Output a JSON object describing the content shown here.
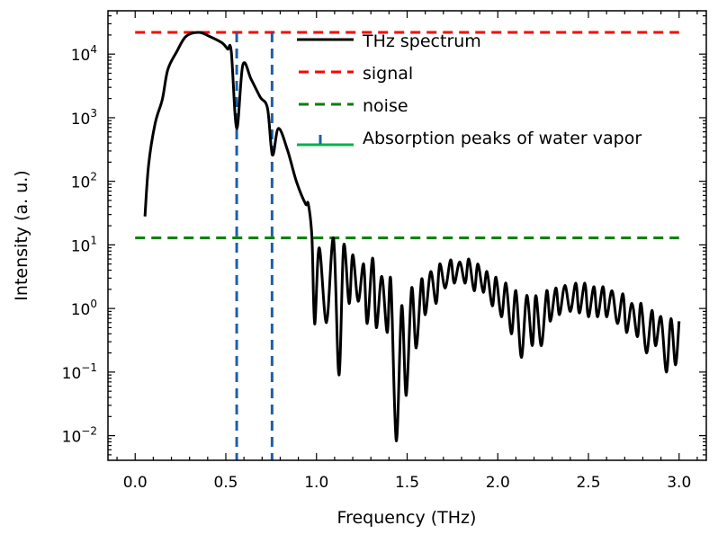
{
  "chart_data": {
    "type": "line",
    "title": "",
    "xlabel": "Frequency (THz)",
    "ylabel": "Intensity (a. u.)",
    "xscale": "linear",
    "yscale": "log",
    "xlim": [
      -0.15,
      3.15
    ],
    "ylim": [
      0.0041,
      48000
    ],
    "grid": false,
    "legend_position": "top-right",
    "x_ticks": [
      {
        "value": 0.0,
        "label": "0.0"
      },
      {
        "value": 0.5,
        "label": "0.5"
      },
      {
        "value": 1.0,
        "label": "1.0"
      },
      {
        "value": 1.5,
        "label": "1.5"
      },
      {
        "value": 2.0,
        "label": "2.0"
      },
      {
        "value": 2.5,
        "label": "2.5"
      },
      {
        "value": 3.0,
        "label": "3.0"
      }
    ],
    "y_ticks": [
      {
        "value": 0.01,
        "base": "10",
        "exp": "−2"
      },
      {
        "value": 0.1,
        "base": "10",
        "exp": "−1"
      },
      {
        "value": 1,
        "base": "10",
        "exp": "0"
      },
      {
        "value": 10,
        "base": "10",
        "exp": "1"
      },
      {
        "value": 100,
        "base": "10",
        "exp": "2"
      },
      {
        "value": 1000,
        "base": "10",
        "exp": "3"
      },
      {
        "value": 10000,
        "base": "10",
        "exp": "4"
      }
    ],
    "series": [
      {
        "name": "THz spectrum",
        "color": "#000000",
        "style": "solid",
        "x": [
          0.054,
          0.074,
          0.11,
          0.15,
          0.18,
          0.23,
          0.28,
          0.35,
          0.41,
          0.48,
          0.51,
          0.53,
          0.56,
          0.594,
          0.64,
          0.69,
          0.73,
          0.757,
          0.79,
          0.84,
          0.89,
          0.94,
          0.955,
          0.975,
          0.99,
          1.015,
          1.055,
          1.094,
          1.124,
          1.15,
          1.18,
          1.2,
          1.23,
          1.26,
          1.28,
          1.31,
          1.33,
          1.36,
          1.39,
          1.41,
          1.44,
          1.47,
          1.495,
          1.525,
          1.55,
          1.58,
          1.6,
          1.63,
          1.66,
          1.68,
          1.71,
          1.74,
          1.76,
          1.79,
          1.82,
          1.84,
          1.87,
          1.89,
          1.92,
          1.94,
          1.97,
          1.99,
          2.02,
          2.045,
          2.075,
          2.1,
          2.13,
          2.16,
          2.19,
          2.21,
          2.24,
          2.27,
          2.29,
          2.32,
          2.34,
          2.37,
          2.4,
          2.43,
          2.45,
          2.48,
          2.5,
          2.53,
          2.55,
          2.58,
          2.6,
          2.63,
          2.66,
          2.69,
          2.71,
          2.74,
          2.77,
          2.79,
          2.82,
          2.85,
          2.87,
          2.9,
          2.93,
          2.955,
          2.98,
          3.0
        ],
        "y": [
          28,
          180,
          810,
          1950,
          5700,
          11000,
          19000,
          22000,
          19000,
          15000,
          12000,
          11000,
          680,
          6800,
          4000,
          2100,
          1400,
          260,
          680,
          310,
          98,
          44,
          44,
          13,
          0.57,
          9,
          0.6,
          12.6,
          0.09,
          9.8,
          1.2,
          7,
          1.3,
          5,
          0.58,
          6.2,
          0.5,
          3.2,
          0.42,
          2.8,
          0.0083,
          1.1,
          0.043,
          2.1,
          0.24,
          2.9,
          0.8,
          3.8,
          1.2,
          5,
          2.1,
          5.8,
          2.5,
          5.4,
          2.5,
          6,
          1.9,
          5,
          1.8,
          3.8,
          1.1,
          3.1,
          0.74,
          2.5,
          0.4,
          1.9,
          0.17,
          1.6,
          0.26,
          1.6,
          0.26,
          1.9,
          0.63,
          2.1,
          0.8,
          2.3,
          0.9,
          2.5,
          0.85,
          2.5,
          0.74,
          2.2,
          0.74,
          2.2,
          0.74,
          1.9,
          0.58,
          1.7,
          0.42,
          1.2,
          0.36,
          1.2,
          0.2,
          0.93,
          0.26,
          0.74,
          0.1,
          0.69,
          0.13,
          0.63
        ]
      },
      {
        "name": "signal",
        "color": "#ff0000",
        "style": "dashed",
        "y_const": 22000,
        "x_range": [
          0.0,
          3.0
        ]
      },
      {
        "name": "noise",
        "color": "#008000",
        "style": "dashed",
        "y_const": 12.9,
        "x_range": [
          0.0,
          3.0
        ]
      },
      {
        "name": "Absorption peaks of water vapor",
        "color": "#1f5fa8",
        "legend_color": "#00b050",
        "style": "dashed-vertical",
        "x_positions": [
          0.56,
          0.755
        ]
      }
    ]
  }
}
